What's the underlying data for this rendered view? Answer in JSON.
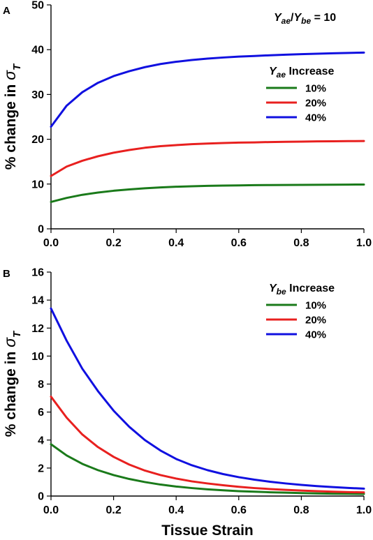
{
  "chart_data": [
    {
      "type": "line",
      "panel_label": "A",
      "annotation": {
        "symbol": "Y",
        "sub1": "ae",
        "slash": "/",
        "sub2": "be",
        "rest": " = 10"
      },
      "ylabel": {
        "text": "% change in ",
        "symbol": "σ",
        "sub": "T"
      },
      "xlabel": "",
      "xlim": [
        0.0,
        1.0
      ],
      "ylim": [
        0,
        50
      ],
      "xticks": [
        "0.0",
        "0.2",
        "0.4",
        "0.6",
        "0.8",
        "1.0"
      ],
      "yticks": [
        "0",
        "10",
        "20",
        "30",
        "40",
        "50"
      ],
      "grid": false,
      "legend": {
        "title_symbol": "Y",
        "title_sub": "ae",
        "title_rest": " Increase",
        "placement": "right"
      },
      "series": [
        {
          "name": "10%",
          "color": "#1a7a1a",
          "x": [
            0.0,
            0.05,
            0.1,
            0.15,
            0.2,
            0.25,
            0.3,
            0.35,
            0.4,
            0.45,
            0.5,
            0.55,
            0.6,
            0.65,
            0.7,
            0.75,
            0.8,
            0.85,
            0.9,
            0.95,
            1.0
          ],
          "y": [
            6.0,
            6.9,
            7.6,
            8.1,
            8.5,
            8.8,
            9.05,
            9.25,
            9.4,
            9.5,
            9.6,
            9.65,
            9.7,
            9.75,
            9.78,
            9.8,
            9.82,
            9.84,
            9.86,
            9.88,
            9.9
          ]
        },
        {
          "name": "20%",
          "color": "#e8201f",
          "x": [
            0.0,
            0.05,
            0.1,
            0.15,
            0.2,
            0.25,
            0.3,
            0.35,
            0.4,
            0.45,
            0.5,
            0.55,
            0.6,
            0.65,
            0.7,
            0.75,
            0.8,
            0.85,
            0.9,
            0.95,
            1.0
          ],
          "y": [
            11.8,
            13.9,
            15.2,
            16.2,
            17.0,
            17.6,
            18.1,
            18.45,
            18.7,
            18.9,
            19.05,
            19.15,
            19.25,
            19.3,
            19.38,
            19.43,
            19.48,
            19.52,
            19.55,
            19.58,
            19.6
          ]
        },
        {
          "name": "40%",
          "color": "#1010e0",
          "x": [
            0.0,
            0.05,
            0.1,
            0.15,
            0.2,
            0.25,
            0.3,
            0.35,
            0.4,
            0.45,
            0.5,
            0.55,
            0.6,
            0.65,
            0.7,
            0.75,
            0.8,
            0.85,
            0.9,
            0.95,
            1.0
          ],
          "y": [
            22.8,
            27.5,
            30.5,
            32.6,
            34.1,
            35.2,
            36.1,
            36.8,
            37.3,
            37.7,
            38.0,
            38.25,
            38.45,
            38.6,
            38.75,
            38.88,
            39.0,
            39.1,
            39.2,
            39.28,
            39.35
          ]
        }
      ]
    },
    {
      "type": "line",
      "panel_label": "B",
      "ylabel": {
        "text": "% change in ",
        "symbol": "σ",
        "sub": "T"
      },
      "xlabel": "Tissue Strain",
      "xlim": [
        0.0,
        1.0
      ],
      "ylim": [
        0,
        16
      ],
      "xticks": [
        "0.0",
        "0.2",
        "0.4",
        "0.6",
        "0.8",
        "1.0"
      ],
      "yticks": [
        "0",
        "2",
        "4",
        "6",
        "8",
        "10",
        "12",
        "14",
        "16"
      ],
      "grid": false,
      "legend": {
        "title_symbol": "Y",
        "title_sub": "be",
        "title_rest": " Increase",
        "placement": "top-right"
      },
      "series": [
        {
          "name": "10%",
          "color": "#1a7a1a",
          "x": [
            0.0,
            0.05,
            0.1,
            0.15,
            0.2,
            0.25,
            0.3,
            0.35,
            0.4,
            0.45,
            0.5,
            0.55,
            0.6,
            0.65,
            0.7,
            0.75,
            0.8,
            0.85,
            0.9,
            0.95,
            1.0
          ],
          "y": [
            3.7,
            2.9,
            2.3,
            1.85,
            1.5,
            1.22,
            1.0,
            0.82,
            0.68,
            0.57,
            0.48,
            0.41,
            0.35,
            0.31,
            0.27,
            0.24,
            0.21,
            0.19,
            0.17,
            0.16,
            0.15
          ]
        },
        {
          "name": "20%",
          "color": "#e8201f",
          "x": [
            0.0,
            0.05,
            0.1,
            0.15,
            0.2,
            0.25,
            0.3,
            0.35,
            0.4,
            0.45,
            0.5,
            0.55,
            0.6,
            0.65,
            0.7,
            0.75,
            0.8,
            0.85,
            0.9,
            0.95,
            1.0
          ],
          "y": [
            7.1,
            5.6,
            4.4,
            3.5,
            2.8,
            2.25,
            1.82,
            1.5,
            1.25,
            1.05,
            0.9,
            0.77,
            0.66,
            0.57,
            0.5,
            0.44,
            0.39,
            0.35,
            0.31,
            0.28,
            0.26
          ]
        },
        {
          "name": "40%",
          "color": "#1010e0",
          "x": [
            0.0,
            0.05,
            0.1,
            0.15,
            0.2,
            0.25,
            0.3,
            0.35,
            0.4,
            0.45,
            0.5,
            0.55,
            0.6,
            0.65,
            0.7,
            0.75,
            0.8,
            0.85,
            0.9,
            0.95,
            1.0
          ],
          "y": [
            13.4,
            11.1,
            9.1,
            7.5,
            6.1,
            4.95,
            4.0,
            3.25,
            2.65,
            2.2,
            1.85,
            1.57,
            1.35,
            1.17,
            1.02,
            0.9,
            0.8,
            0.71,
            0.64,
            0.58,
            0.53
          ]
        }
      ]
    }
  ]
}
